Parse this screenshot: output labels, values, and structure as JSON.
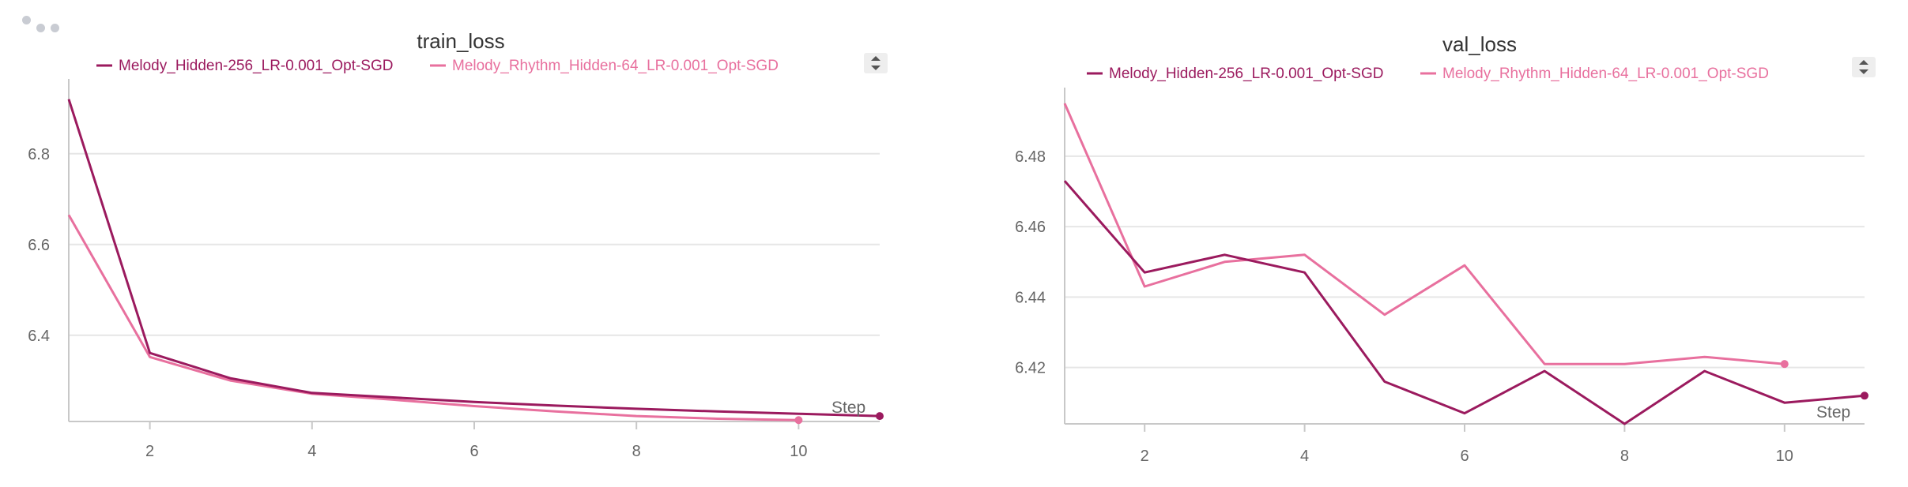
{
  "colors": {
    "series_dark": "#9b1a5e",
    "series_light": "#e8709e",
    "grid": "#e6e6e6",
    "axis": "#c8c8c8"
  },
  "toolbar": {
    "icon": "more-dots-icon"
  },
  "chart_data": [
    {
      "type": "line",
      "title": "train_loss",
      "xlabel": "Step",
      "ylabel": "",
      "xlim": [
        1,
        11
      ],
      "ylim": [
        6.21,
        6.93
      ],
      "xticks": [
        2,
        4,
        6,
        8,
        10
      ],
      "yticks": [
        6.4,
        6.6,
        6.8
      ],
      "grid": true,
      "legend_position": "top",
      "series": [
        {
          "name": "Melody_Hidden-256_LR-0.001_Opt-SGD",
          "color": "#9b1a5e",
          "x": [
            1,
            2,
            3,
            4,
            5,
            6,
            7,
            8,
            9,
            10,
            11
          ],
          "y": [
            6.92,
            6.361,
            6.305,
            6.273,
            6.263,
            6.253,
            6.245,
            6.238,
            6.232,
            6.227,
            6.222
          ]
        },
        {
          "name": "Melody_Rhythm_Hidden-64_LR-0.001_Opt-SGD",
          "color": "#e8709e",
          "x": [
            1,
            2,
            3,
            4,
            5,
            6,
            7,
            8,
            9,
            10
          ],
          "y": [
            6.665,
            6.352,
            6.3,
            6.271,
            6.258,
            6.244,
            6.232,
            6.222,
            6.216,
            6.213
          ]
        }
      ]
    },
    {
      "type": "line",
      "title": "val_loss",
      "xlabel": "Step",
      "ylabel": "",
      "xlim": [
        1,
        11
      ],
      "ylim": [
        6.404,
        6.495
      ],
      "xticks": [
        2,
        4,
        6,
        8,
        10
      ],
      "yticks": [
        6.42,
        6.44,
        6.46,
        6.48
      ],
      "grid": true,
      "legend_position": "top",
      "series": [
        {
          "name": "Melody_Hidden-256_LR-0.001_Opt-SGD",
          "color": "#9b1a5e",
          "x": [
            1,
            2,
            3,
            4,
            5,
            6,
            7,
            8,
            9,
            10,
            11
          ],
          "y": [
            6.473,
            6.447,
            6.452,
            6.447,
            6.416,
            6.407,
            6.419,
            6.404,
            6.419,
            6.41,
            6.412
          ]
        },
        {
          "name": "Melody_Rhythm_Hidden-64_LR-0.001_Opt-SGD",
          "color": "#e8709e",
          "x": [
            1,
            2,
            3,
            4,
            5,
            6,
            7,
            8,
            9,
            10
          ],
          "y": [
            6.495,
            6.443,
            6.45,
            6.452,
            6.435,
            6.449,
            6.421,
            6.421,
            6.423,
            6.421
          ]
        }
      ]
    }
  ]
}
